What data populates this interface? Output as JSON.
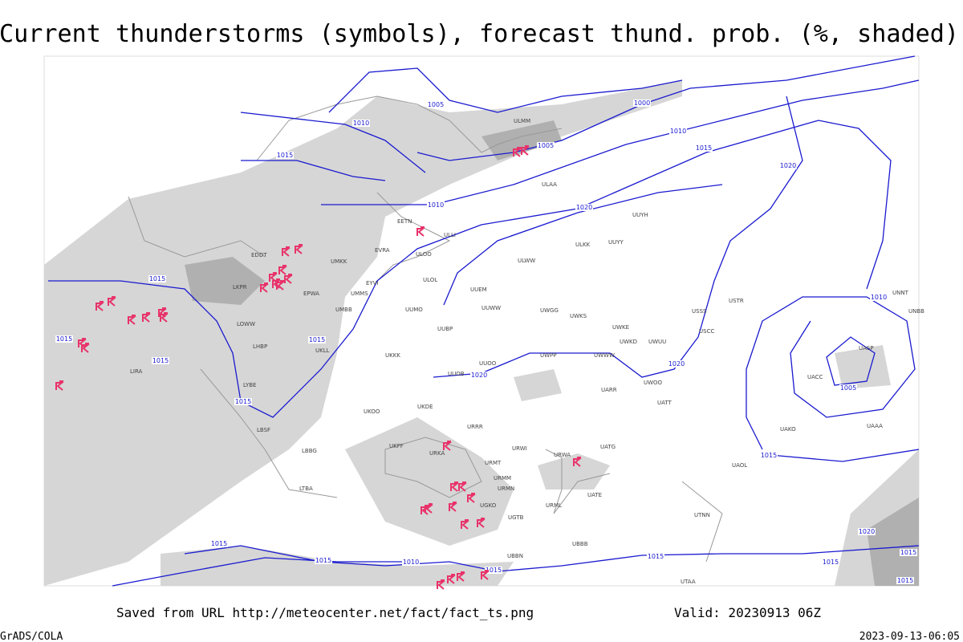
{
  "header": {
    "title": "Current thunderstorms (symbols), forecast thund. prob. (%, shaded)"
  },
  "footer": {
    "source": "Saved from URL http://meteocenter.net/fact/fact_ts.png",
    "valid": "Valid: 20230913 06Z",
    "credit": "GrADS/COLA",
    "timestamp": "2023-09-13-06:05"
  },
  "isobar_labels": [
    "1005",
    "1005",
    "1005",
    "1000",
    "1010",
    "1010",
    "1010",
    "1010",
    "1010",
    "1015",
    "1015",
    "1015",
    "1015",
    "1015",
    "1015",
    "1015",
    "1015",
    "1015",
    "1015",
    "1015",
    "1015",
    "1015",
    "1015",
    "1015",
    "1020",
    "1020",
    "1020",
    "1020",
    "1020"
  ],
  "stations": [
    "ULLI",
    "EETN",
    "ULOO",
    "EVRA",
    "ULOL",
    "UMKK",
    "EDDT",
    "EPWA",
    "UMMS",
    "EYVI",
    "LKPR",
    "LOWW",
    "LHBP",
    "UKLL",
    "UMBB",
    "UKKK",
    "UKOO",
    "UKFF",
    "URKA",
    "URRR",
    "UKDE",
    "UUOO",
    "UUOB",
    "UWPP",
    "UWWW",
    "UWKE",
    "UWKS",
    "USSS",
    "USTR",
    "USCC",
    "UATT",
    "UARR",
    "UATG",
    "URWA",
    "UATE",
    "URML",
    "UBBB",
    "UTAA",
    "UTNN",
    "UAOL",
    "UACC",
    "UASP",
    "UNBB",
    "UNNT",
    "UAAA",
    "UAKO",
    "ULAA",
    "ULMM",
    "UUYY",
    "UUYH",
    "ULKK",
    "ULWW",
    "UUEM",
    "UUWW",
    "UWGG",
    "UUBP",
    "UUMO",
    "LYBE",
    "LBSF",
    "LBBG",
    "LIRA",
    "LTBA",
    "UGTB",
    "UBBN",
    "URMM",
    "URMT",
    "URMN",
    "UGKO",
    "UWOO",
    "UWUU",
    "UWKD",
    "URWI"
  ]
}
